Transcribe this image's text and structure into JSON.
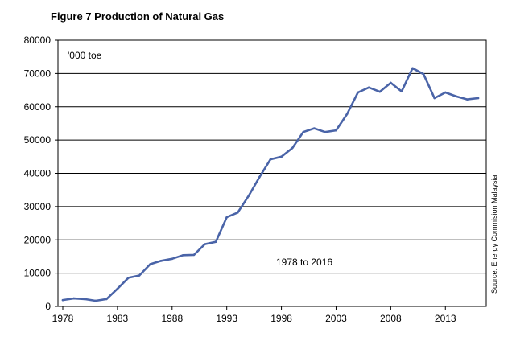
{
  "chart_data": {
    "type": "line",
    "title": "Figure 7  Production  of Natural Gas",
    "unit_label": "'000 toe",
    "period_label": "1978 to 2016",
    "source": "Source:  Energy  Commision Malaysia",
    "xlim": [
      1978,
      2016
    ],
    "x_ticks": [
      1978,
      1983,
      1988,
      1993,
      1998,
      2003,
      2008,
      2013
    ],
    "ylim": [
      0,
      80000
    ],
    "y_ticks": [
      0,
      10000,
      20000,
      30000,
      40000,
      50000,
      60000,
      70000,
      80000
    ],
    "grid": true,
    "legend": "none",
    "series": [
      {
        "color": "#4a64a8",
        "x": [
          1978,
          1979,
          1980,
          1981,
          1982,
          1983,
          1984,
          1985,
          1986,
          1987,
          1988,
          1989,
          1990,
          1991,
          1992,
          1993,
          1994,
          1995,
          1996,
          1997,
          1998,
          1999,
          2000,
          2001,
          2002,
          2003,
          2004,
          2005,
          2006,
          2007,
          2008,
          2009,
          2010,
          2011,
          2012,
          2013,
          2014,
          2015,
          2016
        ],
        "values": [
          1900,
          2400,
          2200,
          1700,
          2200,
          5300,
          8600,
          9300,
          12700,
          13700,
          14300,
          15400,
          15500,
          18700,
          19400,
          26800,
          28200,
          33200,
          38900,
          44200,
          45000,
          47600,
          52400,
          53500,
          52400,
          52900,
          57800,
          64300,
          65800,
          64500,
          67200,
          64600,
          71600,
          69800,
          62600,
          64300,
          63100,
          62200,
          62600
        ]
      }
    ]
  }
}
